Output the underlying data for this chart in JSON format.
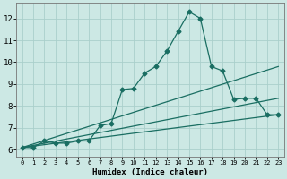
{
  "title": "",
  "xlabel": "Humidex (Indice chaleur)",
  "ylabel": "",
  "bg_color": "#cce8e4",
  "grid_color": "#aacfcb",
  "line_color": "#1a6e62",
  "xlim": [
    -0.5,
    23.5
  ],
  "ylim": [
    5.7,
    12.7
  ],
  "yticks": [
    6,
    7,
    8,
    9,
    10,
    11,
    12
  ],
  "xticks": [
    0,
    1,
    2,
    3,
    4,
    5,
    6,
    7,
    8,
    9,
    10,
    11,
    12,
    13,
    14,
    15,
    16,
    17,
    18,
    19,
    20,
    21,
    22,
    23
  ],
  "series1_x": [
    0,
    1,
    2,
    3,
    4,
    5,
    6,
    7,
    8,
    9,
    10,
    11,
    12,
    13,
    14,
    15,
    16,
    17,
    18,
    19,
    20,
    21,
    22,
    23
  ],
  "series1_y": [
    6.1,
    6.1,
    6.4,
    6.3,
    6.3,
    6.4,
    6.4,
    7.1,
    7.2,
    8.75,
    8.8,
    9.5,
    9.8,
    10.5,
    11.4,
    12.3,
    12.0,
    9.8,
    9.6,
    8.3,
    8.35,
    8.35,
    7.6,
    7.6
  ],
  "series2_x": [
    0,
    23
  ],
  "series2_y": [
    6.1,
    7.6
  ],
  "series3_x": [
    0,
    23
  ],
  "series3_y": [
    6.1,
    8.35
  ],
  "series4_x": [
    0,
    23
  ],
  "series4_y": [
    6.1,
    9.8
  ]
}
